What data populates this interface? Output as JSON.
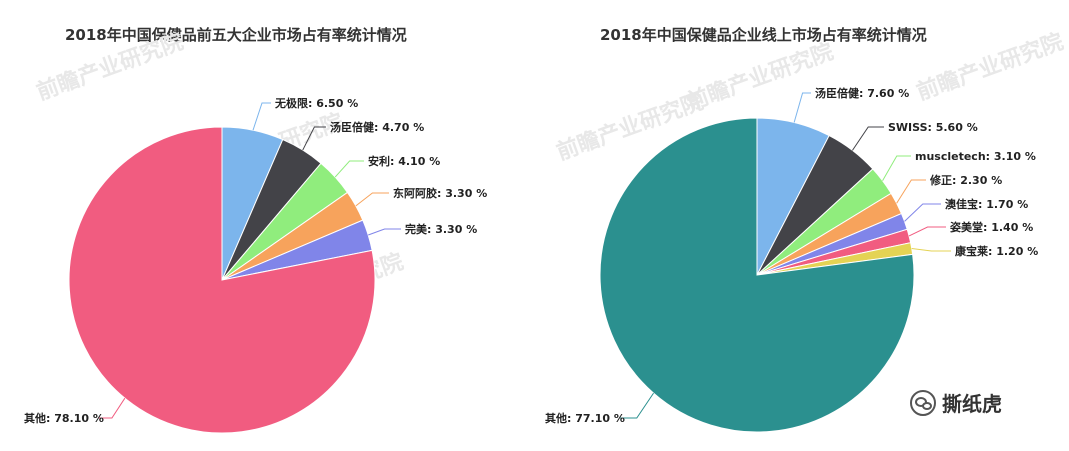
{
  "chart_data": [
    {
      "type": "pie",
      "title": "2018年中国保健品前五大企业市场占有率统计情况",
      "slices": [
        {
          "label": "无极限",
          "value": 6.5,
          "text": "无极限: 6.50 %",
          "color": "#7cb5ec"
        },
        {
          "label": "汤臣倍健",
          "value": 4.7,
          "text": "汤臣倍健: 4.70 %",
          "color": "#434348"
        },
        {
          "label": "安利",
          "value": 4.1,
          "text": "安利: 4.10 %",
          "color": "#90ed7d"
        },
        {
          "label": "东阿阿胶",
          "value": 3.3,
          "text": "东阿阿胶: 3.30 %",
          "color": "#f7a35c"
        },
        {
          "label": "完美",
          "value": 3.3,
          "text": "完美: 3.30 %",
          "color": "#8085e9"
        },
        {
          "label": "其他",
          "value": 78.1,
          "text": "其他: 78.10 %",
          "color": "#f15c80"
        }
      ]
    },
    {
      "type": "pie",
      "title": "2018年中国保健品企业线上市场占有率统计情况",
      "slices": [
        {
          "label": "汤臣倍健",
          "value": 7.6,
          "text": "汤臣倍健: 7.60 %",
          "color": "#7cb5ec"
        },
        {
          "label": "SWISS",
          "value": 5.6,
          "text": "SWISS: 5.60 %",
          "color": "#434348"
        },
        {
          "label": "muscletech",
          "value": 3.1,
          "text": "muscletech: 3.10 %",
          "color": "#90ed7d"
        },
        {
          "label": "修正",
          "value": 2.3,
          "text": "修正: 2.30 %",
          "color": "#f7a35c"
        },
        {
          "label": "澳佳宝",
          "value": 1.7,
          "text": "澳佳宝: 1.70 %",
          "color": "#8085e9"
        },
        {
          "label": "姿美堂",
          "value": 1.4,
          "text": "姿美堂: 1.40 %",
          "color": "#f15c80"
        },
        {
          "label": "康宝莱",
          "value": 1.2,
          "text": "康宝莱: 1.20 %",
          "color": "#e4d354"
        },
        {
          "label": "其他",
          "value": 77.1,
          "text": "其他: 77.10 %",
          "color": "#2b908f"
        }
      ]
    }
  ],
  "watermark": "前瞻产业研究院",
  "brand": {
    "name": "撕纸虎",
    "icon": "wechat-icon"
  }
}
